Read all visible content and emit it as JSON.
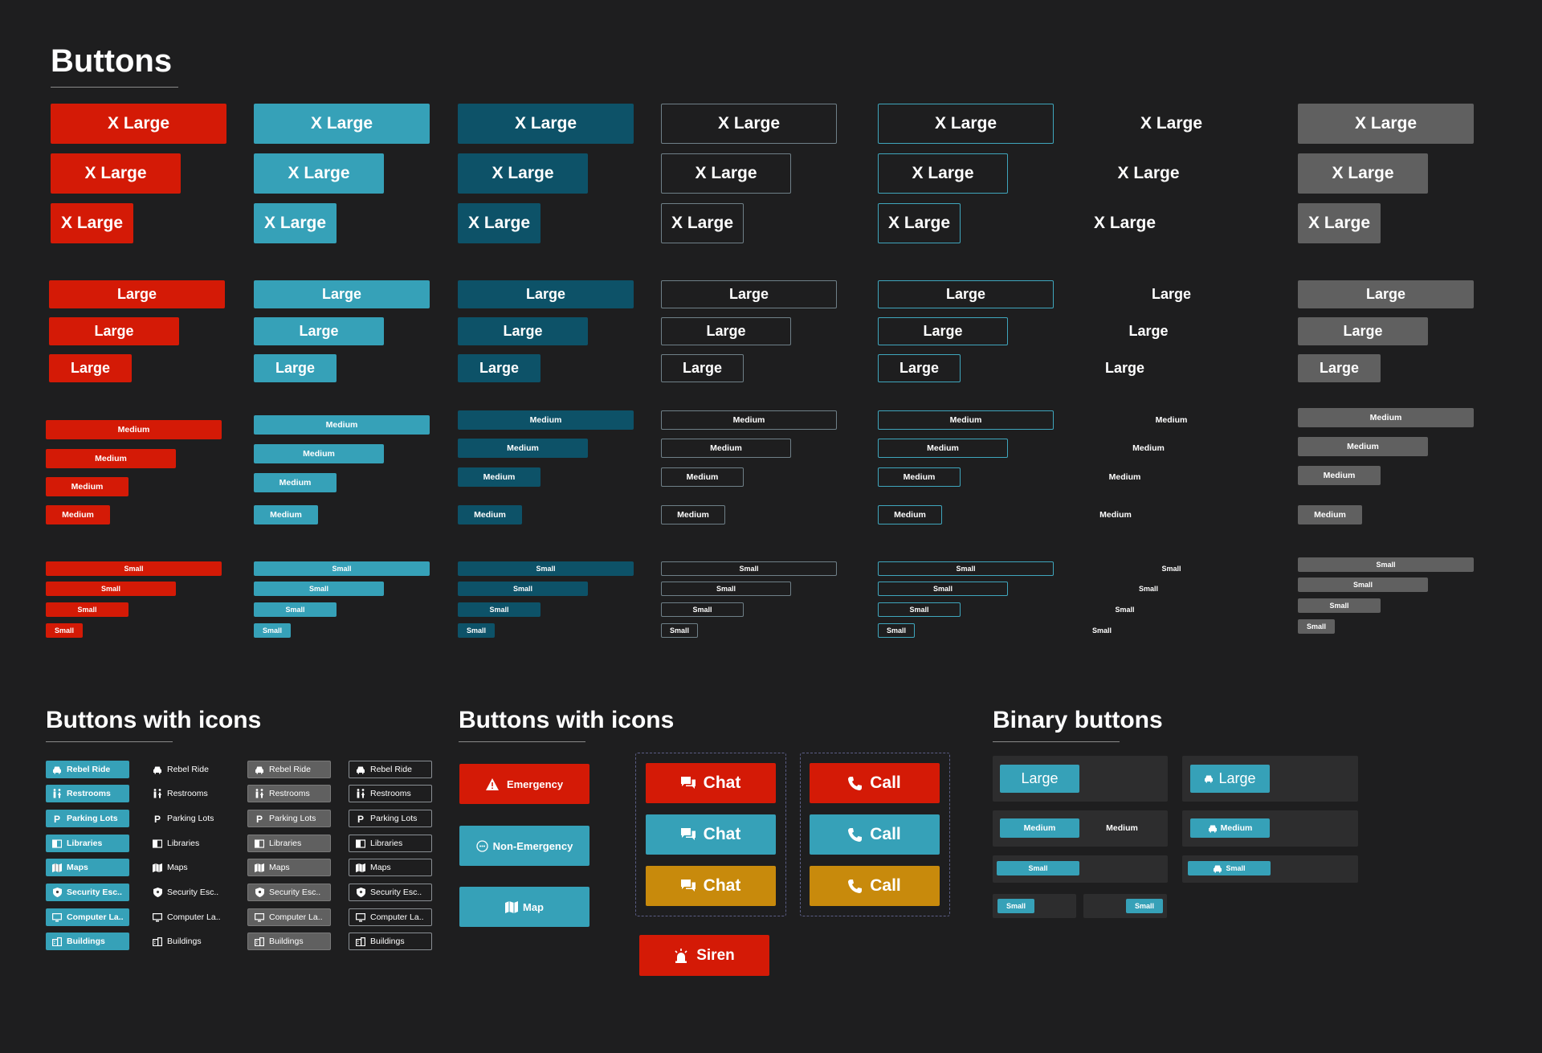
{
  "headings": {
    "buttons": "Buttons",
    "buttons_with_icons_left": "Buttons with icons",
    "buttons_with_icons_right": "Buttons with icons",
    "binary_buttons": "Binary buttons"
  },
  "sizes": {
    "xlarge": "X Large",
    "large": "Large",
    "medium": "Medium",
    "small": "Small"
  },
  "colors": {
    "background": "#1e1e1f",
    "red": "#d41a06",
    "cyan": "#36a1b8",
    "dark_teal": "#0d5268",
    "gray": "#606060",
    "amber": "#c88a0c",
    "outline": "#6f8088",
    "outline_cyan": "#3fa6bd"
  },
  "icon_list": [
    {
      "label": "Rebel Ride",
      "icon": "car-icon"
    },
    {
      "label": "Restrooms",
      "icon": "restroom-icon"
    },
    {
      "label": "Parking Lots",
      "icon": "parking-icon"
    },
    {
      "label": "Libraries",
      "icon": "book-icon"
    },
    {
      "label": "Maps",
      "icon": "map-icon"
    },
    {
      "label": "Security Esc..",
      "icon": "shield-icon"
    },
    {
      "label": "Computer La..",
      "icon": "monitor-icon"
    },
    {
      "label": "Buildings",
      "icon": "building-icon"
    }
  ],
  "action_buttons": {
    "emergency": "Emergency",
    "non_emergency": "Non-Emergency",
    "map": "Map",
    "chat": "Chat",
    "call": "Call",
    "siren": "Siren"
  },
  "binary": {
    "large": "Large",
    "medium": "Medium",
    "small": "Small"
  }
}
